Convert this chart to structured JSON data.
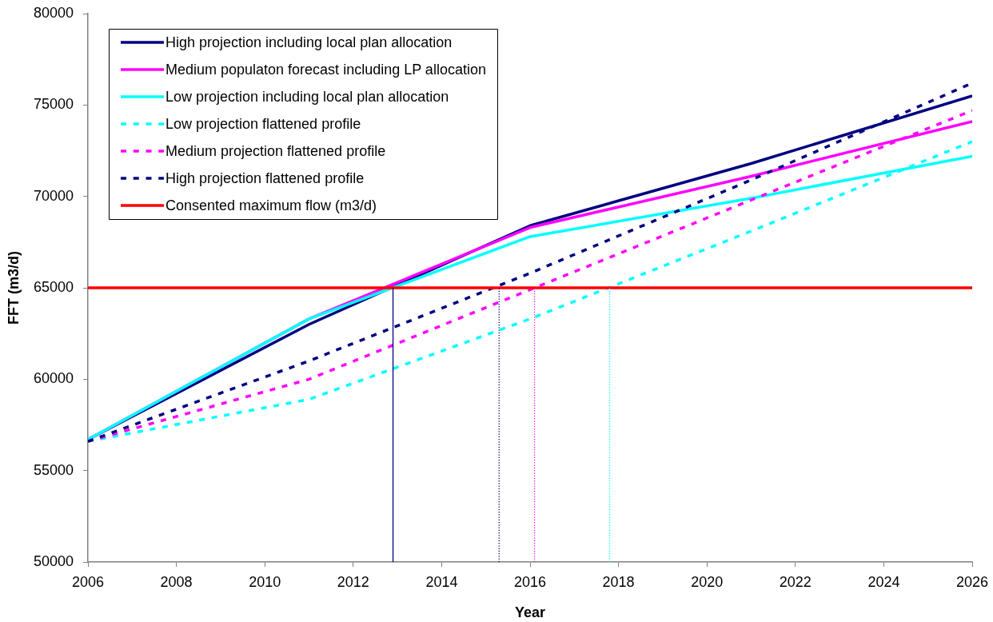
{
  "chart_data": {
    "type": "line",
    "xlabel": "Year",
    "ylabel": "FFT (m3/d)",
    "xlim": [
      2006,
      2026
    ],
    "xticks": [
      2006,
      2008,
      2010,
      2012,
      2014,
      2016,
      2018,
      2020,
      2022,
      2024,
      2026
    ],
    "ylim": [
      50000,
      80000
    ],
    "yticks": [
      50000,
      55000,
      60000,
      65000,
      70000,
      75000,
      80000
    ],
    "legend": "top left",
    "x": [
      2006,
      2011,
      2016,
      2021,
      2026
    ],
    "series": [
      {
        "name": "High projection including local plan allocation",
        "color": "#000080",
        "line_style": "solid",
        "values": [
          56700,
          63000,
          68400,
          71800,
          75500
        ]
      },
      {
        "name": "Medium populaton forecast including LP allocation",
        "color": "#ff00ff",
        "line_style": "solid",
        "values": [
          56700,
          63300,
          68300,
          71100,
          74100
        ]
      },
      {
        "name": "Low projection including local plan allocation",
        "color": "#00ffff",
        "line_style": "solid",
        "values": [
          56700,
          63300,
          67800,
          69900,
          72200
        ]
      },
      {
        "name": "Low projection flattened profile",
        "color": "#00ffff",
        "line_style": "dashed",
        "values": [
          56600,
          58900,
          63300,
          68100,
          73000
        ]
      },
      {
        "name": "Medium projection flattened profile",
        "color": "#ff00ff",
        "line_style": "dashed",
        "values": [
          56600,
          60000,
          64900,
          69800,
          74700
        ]
      },
      {
        "name": "High projection flattened profile",
        "color": "#000080",
        "line_style": "dashed",
        "values": [
          56600,
          61000,
          65800,
          70900,
          76200
        ]
      },
      {
        "name": "Consented maximum flow (m3/d)",
        "color": "#ff0000",
        "line_style": "solid",
        "x": [
          2006,
          2026
        ],
        "values": [
          65000,
          65000
        ]
      },
      {
        "color": "#000080",
        "line_style": "solid",
        "x": [
          2012.9,
          2012.9
        ],
        "values": [
          50000,
          65000
        ]
      },
      {
        "color": "#000080",
        "line_style": "dotted",
        "x": [
          2015.3,
          2015.3
        ],
        "values": [
          50000,
          65000
        ]
      },
      {
        "color": "#ff00ff",
        "line_style": "dotted",
        "x": [
          2016.1,
          2016.1
        ],
        "values": [
          50000,
          65000
        ]
      },
      {
        "color": "#00ffff",
        "line_style": "dotted",
        "x": [
          2017.8,
          2017.8
        ],
        "values": [
          50000,
          65000
        ]
      }
    ]
  }
}
